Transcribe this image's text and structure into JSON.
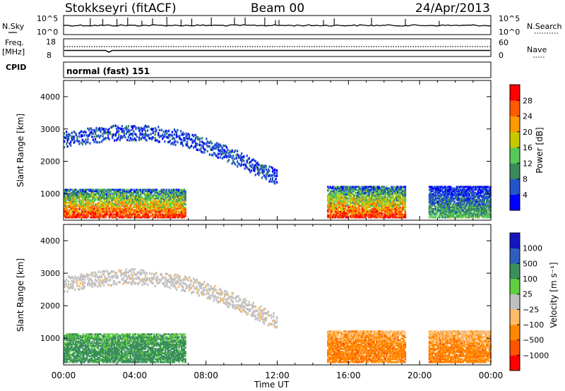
{
  "header": {
    "station": "Stokkseyri (fitACF)",
    "beam": "Beam 00",
    "date": "24/Apr/2013"
  },
  "summary_panel": {
    "nsky_label": "N.Sky",
    "nsky_ticks": [
      "10^5",
      "10^0"
    ],
    "nsearch_label": "N.Search",
    "nsearch_ticks": [
      "10^5",
      "10^0"
    ],
    "freq_label_1": "Freq.",
    "freq_label_2": "[MHz]",
    "freq_ticks": [
      "18",
      "8"
    ],
    "nave_label": "Nave",
    "nave_ticks": [
      "60",
      "0"
    ],
    "cpid_label": "CPID",
    "cpid_value": "normal (fast) 151"
  },
  "colors": {
    "power": [
      "#0000ff",
      "#2255cc",
      "#3a8a5a",
      "#58c858",
      "#c8c800",
      "#ff9900",
      "#ff5a00",
      "#ff0000"
    ],
    "velocity": [
      "#ff0000",
      "#ff5500",
      "#ff8800",
      "#ffbb66",
      "#c0c0c0",
      "#60d040",
      "#3a8f5a",
      "#2d5fbf",
      "#1515c0"
    ]
  },
  "chart_data": [
    {
      "type": "heatmap",
      "title": "Power",
      "ylabel": "Slant Range [km]",
      "xlabel": "",
      "ylim": [
        180,
        4500
      ],
      "xlim": [
        0,
        24
      ],
      "y_ticks": [
        "4000",
        "3000",
        "2000",
        "1000"
      ],
      "colorbar_label": "Power [dB]",
      "colorbar_ticks": [
        "28",
        "24",
        "20",
        "16",
        "12",
        "8",
        "4"
      ],
      "features": [
        {
          "name": "near-range echoes",
          "start_h": 0.0,
          "end_h": 6.8,
          "range_km": [
            250,
            1150
          ],
          "power_db": 30
        },
        {
          "name": "far-range band",
          "start_h": 0.0,
          "end_h": 12.0,
          "range_km": [
            1300,
            3500
          ],
          "power_db": 6
        },
        {
          "name": "evening near-range echoes",
          "start_h": 14.8,
          "end_h": 19.2,
          "range_km": [
            250,
            1200
          ],
          "power_db": 30
        },
        {
          "name": "late evening echoes",
          "start_h": 20.5,
          "end_h": 24.0,
          "range_km": [
            250,
            1200
          ],
          "power_db": 14
        }
      ]
    },
    {
      "type": "heatmap",
      "title": "Velocity",
      "ylabel": "Slant Range [km]",
      "xlabel": "Time UT",
      "ylim": [
        180,
        4500
      ],
      "xlim": [
        0,
        24
      ],
      "x_ticks": [
        "00:00",
        "04:00",
        "08:00",
        "12:00",
        "16:00",
        "20:00",
        "00:00"
      ],
      "y_ticks": [
        "4000",
        "3000",
        "2000",
        "1000"
      ],
      "colorbar_label": "Velocity [m s⁻¹]",
      "colorbar_ticks": [
        "1000",
        "500",
        "100",
        "25",
        "−25",
        "−100",
        "−500",
        "−1000"
      ],
      "features": [
        {
          "name": "near-range echoes",
          "start_h": 0.0,
          "end_h": 6.8,
          "range_km": [
            250,
            1150
          ],
          "velocity_ms": 300
        },
        {
          "name": "far-range band",
          "start_h": 0.0,
          "end_h": 12.0,
          "range_km": [
            1300,
            3500
          ],
          "velocity_ms": 0
        },
        {
          "name": "evening near-range echoes",
          "start_h": 14.8,
          "end_h": 19.2,
          "range_km": [
            250,
            1200
          ],
          "velocity_ms": -250
        },
        {
          "name": "late evening echoes",
          "start_h": 20.5,
          "end_h": 24.0,
          "range_km": [
            250,
            1200
          ],
          "velocity_ms": -200
        }
      ]
    }
  ]
}
